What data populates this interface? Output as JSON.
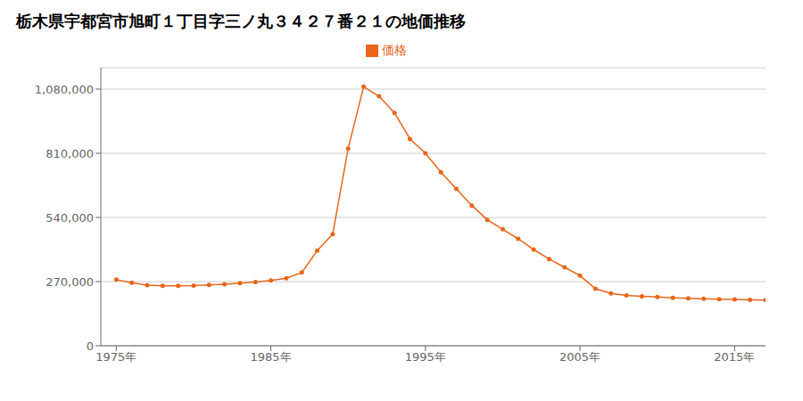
{
  "chart_data": {
    "type": "line",
    "title": "栃木県宇都宮市旭町１丁目字三ノ丸３４２７番２１の地価推移",
    "x": [
      1975,
      1976,
      1977,
      1978,
      1979,
      1980,
      1981,
      1982,
      1983,
      1984,
      1985,
      1986,
      1987,
      1988,
      1989,
      1990,
      1991,
      1992,
      1993,
      1994,
      1995,
      1996,
      1997,
      1998,
      1999,
      2000,
      2001,
      2002,
      2003,
      2004,
      2005,
      2006,
      2007,
      2008,
      2009,
      2010,
      2011,
      2012,
      2013,
      2014,
      2015,
      2016,
      2017
    ],
    "series": [
      {
        "name": "価格",
        "color": "#e8651a",
        "marker": "circle",
        "values": [
          278000,
          265000,
          255000,
          252000,
          252000,
          253000,
          256000,
          259000,
          263000,
          268000,
          275000,
          284000,
          308000,
          400000,
          470000,
          830000,
          1090000,
          1050000,
          980000,
          870000,
          810000,
          730000,
          660000,
          590000,
          530000,
          490000,
          450000,
          405000,
          365000,
          330000,
          295000,
          240000,
          220000,
          212000,
          208000,
          205000,
          202000,
          200000,
          198000,
          196000,
          195000,
          193000,
          192000
        ]
      }
    ],
    "xlim": [
      1974,
      2017
    ],
    "xticks": [
      {
        "value": 1975,
        "label": "1975年"
      },
      {
        "value": 1985,
        "label": "1985年"
      },
      {
        "value": 1995,
        "label": "1995年"
      },
      {
        "value": 2005,
        "label": "2005年"
      },
      {
        "value": 2015,
        "label": "2015年"
      }
    ],
    "ylim": [
      0,
      1170000
    ],
    "yticks": [
      0,
      {
        "value": 270000,
        "label": "270,000"
      },
      {
        "value": 540000,
        "label": "540,000"
      },
      {
        "value": 810000,
        "label": "810,000"
      },
      {
        "value": 1080000,
        "label": "1,080,000"
      }
    ],
    "grid": true,
    "legend": "top"
  }
}
